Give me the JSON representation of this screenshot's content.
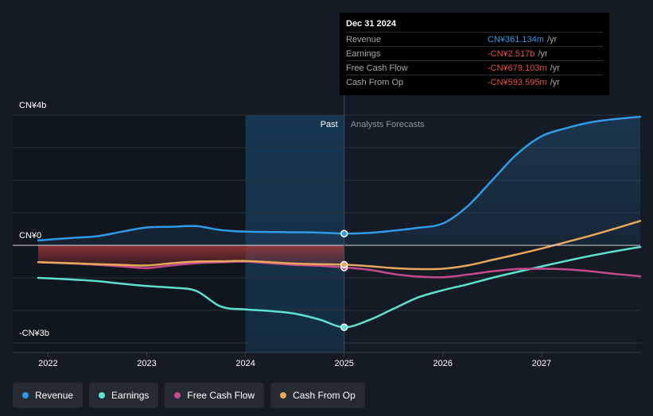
{
  "chart_data": {
    "type": "line",
    "title": "",
    "y_unit": "CN¥",
    "ylim": [
      -3.0,
      4.0
    ],
    "y_tick_labels": [
      {
        "value": 4.0,
        "label": "CN¥4b"
      },
      {
        "value": 0.0,
        "label": "CN¥0"
      },
      {
        "value": -3.0,
        "label": "-CN¥3b"
      }
    ],
    "xlim": [
      2021.9,
      2028.0
    ],
    "x_ticks": [
      {
        "value": 2022,
        "label": "2022"
      },
      {
        "value": 2023,
        "label": "2023"
      },
      {
        "value": 2024,
        "label": "2024"
      },
      {
        "value": 2025,
        "label": "2025"
      },
      {
        "value": 2026,
        "label": "2026"
      },
      {
        "value": 2027,
        "label": "2027"
      }
    ],
    "divider_x": 2025.0,
    "highlight_start_x": 2024.0,
    "past_label": "Past",
    "forecast_label": "Analysts Forecasts",
    "series": [
      {
        "name": "Revenue",
        "color": "#2f9be8",
        "x": [
          2021.9,
          2022.25,
          2022.5,
          2022.75,
          2023.0,
          2023.25,
          2023.5,
          2023.75,
          2024.0,
          2024.25,
          2024.5,
          2024.75,
          2025.0,
          2025.25,
          2025.5,
          2025.75,
          2026.0,
          2026.25,
          2026.5,
          2026.75,
          2027.0,
          2027.25,
          2027.5,
          2027.75,
          2028.0
        ],
        "values": [
          0.15,
          0.23,
          0.28,
          0.42,
          0.55,
          0.57,
          0.59,
          0.47,
          0.42,
          0.41,
          0.4,
          0.39,
          0.36,
          0.38,
          0.45,
          0.54,
          0.67,
          1.2,
          2.0,
          2.8,
          3.35,
          3.6,
          3.78,
          3.88,
          3.95
        ]
      },
      {
        "name": "Earnings",
        "color": "#5ee0d0",
        "x": [
          2021.9,
          2022.25,
          2022.5,
          2022.75,
          2023.0,
          2023.25,
          2023.5,
          2023.75,
          2024.0,
          2024.25,
          2024.5,
          2024.75,
          2025.0,
          2025.25,
          2025.5,
          2025.75,
          2026.0,
          2026.25,
          2026.5,
          2026.75,
          2027.0,
          2027.25,
          2027.5,
          2027.75,
          2028.0
        ],
        "values": [
          -1.0,
          -1.05,
          -1.1,
          -1.18,
          -1.25,
          -1.3,
          -1.4,
          -1.88,
          -1.97,
          -2.02,
          -2.1,
          -2.28,
          -2.517,
          -2.3,
          -1.95,
          -1.6,
          -1.38,
          -1.2,
          -1.0,
          -0.82,
          -0.65,
          -0.48,
          -0.32,
          -0.18,
          -0.05
        ]
      },
      {
        "name": "Free Cash Flow",
        "color": "#c44a8e",
        "x": [
          2021.9,
          2022.25,
          2022.5,
          2022.75,
          2023.0,
          2023.25,
          2023.5,
          2023.75,
          2024.0,
          2024.25,
          2024.5,
          2024.75,
          2025.0,
          2025.25,
          2025.5,
          2025.75,
          2026.0,
          2026.25,
          2026.5,
          2026.75,
          2027.0,
          2027.25,
          2027.5,
          2027.75,
          2028.0
        ],
        "values": [
          -0.52,
          -0.56,
          -0.6,
          -0.65,
          -0.7,
          -0.62,
          -0.55,
          -0.52,
          -0.5,
          -0.55,
          -0.6,
          -0.63,
          -0.679,
          -0.75,
          -0.88,
          -0.96,
          -0.98,
          -0.9,
          -0.8,
          -0.73,
          -0.72,
          -0.74,
          -0.8,
          -0.88,
          -0.95
        ]
      },
      {
        "name": "Cash From Op",
        "color": "#e8a85b",
        "x": [
          2021.9,
          2022.25,
          2022.5,
          2022.75,
          2023.0,
          2023.25,
          2023.5,
          2023.75,
          2024.0,
          2024.25,
          2024.5,
          2024.75,
          2025.0,
          2025.25,
          2025.5,
          2025.75,
          2026.0,
          2026.25,
          2026.5,
          2026.75,
          2027.0,
          2027.25,
          2027.5,
          2027.75,
          2028.0
        ],
        "values": [
          -0.52,
          -0.55,
          -0.58,
          -0.6,
          -0.62,
          -0.55,
          -0.5,
          -0.49,
          -0.48,
          -0.52,
          -0.56,
          -0.58,
          -0.594,
          -0.64,
          -0.7,
          -0.73,
          -0.72,
          -0.62,
          -0.45,
          -0.28,
          -0.1,
          0.1,
          0.3,
          0.52,
          0.75
        ]
      }
    ]
  },
  "tooltip": {
    "date": "Dec 31 2024",
    "rows": [
      {
        "label": "Revenue",
        "value": "CN¥361.134m",
        "unit": "/yr",
        "color": "#2f9be8"
      },
      {
        "label": "Earnings",
        "value": "-CN¥2.517b",
        "unit": "/yr",
        "color": "#e84c4c"
      },
      {
        "label": "Free Cash Flow",
        "value": "-CN¥679.103m",
        "unit": "/yr",
        "color": "#e84c4c"
      },
      {
        "label": "Cash From Op",
        "value": "-CN¥593.595m",
        "unit": "/yr",
        "color": "#e84c4c"
      }
    ]
  },
  "legend": [
    {
      "label": "Revenue",
      "color": "#2f9be8"
    },
    {
      "label": "Earnings",
      "color": "#5ee0d0"
    },
    {
      "label": "Free Cash Flow",
      "color": "#c44a8e"
    },
    {
      "label": "Cash From Op",
      "color": "#e8a85b"
    }
  ]
}
